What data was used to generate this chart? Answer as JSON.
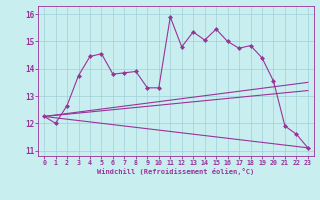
{
  "title": "",
  "xlabel": "Windchill (Refroidissement éolien,°C)",
  "ylabel": "",
  "xlim": [
    -0.5,
    23.5
  ],
  "ylim": [
    10.8,
    16.3
  ],
  "yticks": [
    11,
    12,
    13,
    14,
    15,
    16
  ],
  "xticks": [
    0,
    1,
    2,
    3,
    4,
    5,
    6,
    7,
    8,
    9,
    10,
    11,
    12,
    13,
    14,
    15,
    16,
    17,
    18,
    19,
    20,
    21,
    22,
    23
  ],
  "bg_color": "#c8eef0",
  "line_color": "#993399",
  "grid_color": "#a0d0d8",
  "lines": [
    {
      "x": [
        0,
        1,
        2,
        3,
        4,
        5,
        6,
        7,
        8,
        9,
        10,
        11,
        12,
        13,
        14,
        15,
        16,
        17,
        18,
        19,
        20,
        21,
        22,
        23
      ],
      "y": [
        12.25,
        12.0,
        12.65,
        13.75,
        14.45,
        14.55,
        13.8,
        13.85,
        13.9,
        13.3,
        13.3,
        15.9,
        14.8,
        15.35,
        15.05,
        15.45,
        15.0,
        14.75,
        14.85,
        14.4,
        13.55,
        11.9,
        11.6,
        11.1
      ],
      "marker": "D",
      "markersize": 2.0,
      "linewidth": 0.8
    },
    {
      "x": [
        0,
        23
      ],
      "y": [
        12.25,
        13.5
      ],
      "marker": null,
      "markersize": 0,
      "linewidth": 0.8
    },
    {
      "x": [
        0,
        23
      ],
      "y": [
        12.25,
        13.2
      ],
      "marker": null,
      "markersize": 0,
      "linewidth": 0.8
    },
    {
      "x": [
        0,
        23
      ],
      "y": [
        12.25,
        11.1
      ],
      "marker": null,
      "markersize": 0,
      "linewidth": 0.8
    }
  ]
}
